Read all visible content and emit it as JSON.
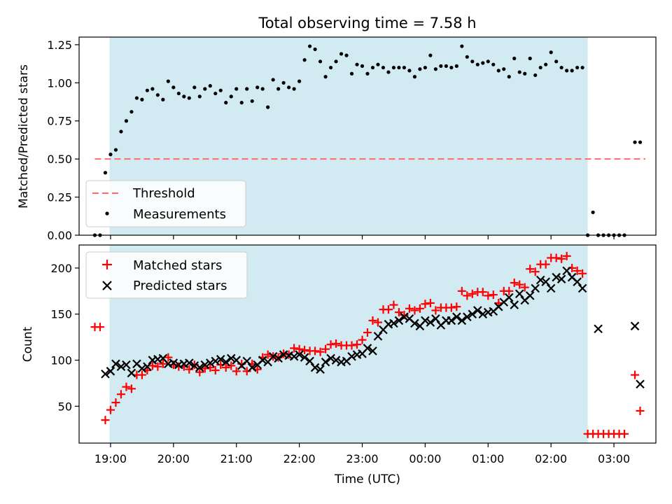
{
  "title": "Total observing time = 7.58 h",
  "colors": {
    "observing_band": "#add8e6",
    "threshold": "#ff6b6b",
    "measurements": "#000000",
    "matched": "#ff0000",
    "predicted": "#000000"
  },
  "chart_data": [
    {
      "type": "scatter",
      "panel": "top",
      "ylabel": "Matched/Predicted stars",
      "ylim": [
        0.0,
        1.3
      ],
      "yticks": [
        "0.00",
        "0.25",
        "0.50",
        "0.75",
        "1.00",
        "1.25"
      ],
      "observing_window": [
        "18:59",
        "02:35"
      ],
      "threshold": {
        "name": "Threshold",
        "value": 0.5,
        "from": "18:45",
        "to": "03:30"
      },
      "series": [
        {
          "name": "Measurements",
          "x": [
            "18:45",
            "18:50",
            "18:55",
            "19:00",
            "19:05",
            "19:10",
            "19:15",
            "19:20",
            "19:25",
            "19:30",
            "19:35",
            "19:40",
            "19:45",
            "19:50",
            "19:55",
            "20:00",
            "20:05",
            "20:10",
            "20:15",
            "20:20",
            "20:25",
            "20:30",
            "20:35",
            "20:40",
            "20:45",
            "20:50",
            "20:55",
            "21:00",
            "21:05",
            "21:10",
            "21:15",
            "21:20",
            "21:25",
            "21:30",
            "21:35",
            "21:40",
            "21:45",
            "21:50",
            "21:55",
            "22:00",
            "22:05",
            "22:10",
            "22:15",
            "22:20",
            "22:25",
            "22:30",
            "22:35",
            "22:40",
            "22:45",
            "22:50",
            "22:55",
            "23:00",
            "23:05",
            "23:10",
            "23:15",
            "23:20",
            "23:25",
            "23:30",
            "23:35",
            "23:40",
            "23:45",
            "23:50",
            "23:55",
            "00:00",
            "00:05",
            "00:10",
            "00:15",
            "00:20",
            "00:25",
            "00:30",
            "00:35",
            "00:40",
            "00:45",
            "00:50",
            "00:55",
            "01:00",
            "01:05",
            "01:10",
            "01:15",
            "01:20",
            "01:25",
            "01:30",
            "01:35",
            "01:40",
            "01:45",
            "01:50",
            "01:55",
            "02:00",
            "02:05",
            "02:10",
            "02:15",
            "02:20",
            "02:25",
            "02:30",
            "02:35",
            "02:40",
            "02:45",
            "02:50",
            "02:55",
            "03:00",
            "03:05",
            "03:10",
            "03:20",
            "03:25"
          ],
          "y": [
            0.0,
            0.0,
            0.41,
            0.53,
            0.56,
            0.68,
            0.75,
            0.81,
            0.9,
            0.89,
            0.95,
            0.96,
            0.92,
            0.89,
            1.01,
            0.97,
            0.93,
            0.91,
            0.9,
            0.97,
            0.91,
            0.96,
            0.98,
            0.93,
            0.95,
            0.87,
            0.91,
            0.96,
            0.87,
            0.96,
            0.88,
            0.97,
            0.96,
            0.84,
            1.02,
            0.96,
            1.0,
            0.97,
            0.96,
            1.01,
            1.15,
            1.24,
            1.22,
            1.14,
            1.04,
            1.1,
            1.14,
            1.19,
            1.18,
            1.06,
            1.12,
            1.11,
            1.06,
            1.1,
            1.12,
            1.1,
            1.07,
            1.1,
            1.1,
            1.1,
            1.08,
            1.04,
            1.09,
            1.1,
            1.18,
            1.09,
            1.11,
            1.11,
            1.1,
            1.11,
            1.24,
            1.17,
            1.14,
            1.12,
            1.13,
            1.14,
            1.12,
            1.08,
            1.09,
            1.04,
            1.16,
            1.07,
            1.06,
            1.16,
            1.05,
            1.1,
            1.12,
            1.2,
            1.14,
            1.1,
            1.08,
            1.08,
            1.1,
            1.1,
            0.0,
            0.15,
            0.0,
            0.0,
            0.0,
            0.0,
            0.0,
            0.0,
            0.61,
            0.61
          ]
        }
      ],
      "legend": {
        "position": "lower left",
        "entries": [
          "Threshold",
          "Measurements"
        ]
      }
    },
    {
      "type": "scatter",
      "panel": "bottom",
      "xlabel": "Time (UTC)",
      "ylabel": "Count",
      "ylim": [
        10,
        225
      ],
      "yticks": [
        "50",
        "100",
        "150",
        "200"
      ],
      "xlim": [
        "18:30",
        "03:40"
      ],
      "xticks": [
        "19:00",
        "20:00",
        "21:00",
        "22:00",
        "23:00",
        "00:00",
        "01:00",
        "02:00",
        "03:00"
      ],
      "observing_window": [
        "18:59",
        "02:35"
      ],
      "series": [
        {
          "name": "Matched stars",
          "marker": "+",
          "x": [
            "18:45",
            "18:50",
            "18:55",
            "19:00",
            "19:05",
            "19:10",
            "19:15",
            "19:20",
            "19:25",
            "19:30",
            "19:35",
            "19:40",
            "19:45",
            "19:50",
            "19:55",
            "20:00",
            "20:05",
            "20:10",
            "20:15",
            "20:20",
            "20:25",
            "20:30",
            "20:35",
            "20:40",
            "20:45",
            "20:50",
            "20:55",
            "21:00",
            "21:05",
            "21:10",
            "21:15",
            "21:20",
            "21:25",
            "21:30",
            "21:35",
            "21:40",
            "21:45",
            "21:50",
            "21:55",
            "22:00",
            "22:05",
            "22:10",
            "22:15",
            "22:20",
            "22:25",
            "22:30",
            "22:35",
            "22:40",
            "22:45",
            "22:50",
            "22:55",
            "23:00",
            "23:05",
            "23:10",
            "23:15",
            "23:20",
            "23:25",
            "23:30",
            "23:35",
            "23:40",
            "23:45",
            "23:50",
            "23:55",
            "00:00",
            "00:05",
            "00:10",
            "00:15",
            "00:20",
            "00:25",
            "00:30",
            "00:35",
            "00:40",
            "00:45",
            "00:50",
            "00:55",
            "01:00",
            "01:05",
            "01:10",
            "01:15",
            "01:20",
            "01:25",
            "01:30",
            "01:35",
            "01:40",
            "01:45",
            "01:50",
            "01:55",
            "02:00",
            "02:05",
            "02:10",
            "02:15",
            "02:20",
            "02:25",
            "02:30",
            "02:35",
            "02:40",
            "02:45",
            "02:50",
            "02:55",
            "03:00",
            "03:05",
            "03:10",
            "03:20",
            "03:25"
          ],
          "y": [
            136,
            136,
            35,
            46,
            54,
            63,
            71,
            69,
            84,
            84,
            89,
            94,
            93,
            96,
            103,
            95,
            93,
            93,
            90,
            95,
            87,
            91,
            92,
            89,
            95,
            92,
            94,
            88,
            96,
            88,
            96,
            90,
            103,
            106,
            104,
            103,
            107,
            106,
            113,
            112,
            111,
            110,
            110,
            109,
            112,
            117,
            118,
            116,
            116,
            116,
            117,
            122,
            130,
            143,
            141,
            155,
            155,
            160,
            152,
            149,
            156,
            154,
            156,
            161,
            162,
            154,
            157,
            157,
            157,
            158,
            175,
            170,
            172,
            174,
            174,
            170,
            171,
            162,
            175,
            175,
            184,
            182,
            179,
            199,
            196,
            204,
            204,
            211,
            211,
            210,
            213,
            200,
            197,
            194,
            20,
            20,
            20,
            20,
            20,
            20,
            20,
            20,
            84,
            45
          ]
        },
        {
          "name": "Predicted stars",
          "marker": "x",
          "x": [
            "18:55",
            "19:00",
            "19:05",
            "19:10",
            "19:15",
            "19:20",
            "19:25",
            "19:30",
            "19:35",
            "19:40",
            "19:45",
            "19:50",
            "19:55",
            "20:00",
            "20:05",
            "20:10",
            "20:15",
            "20:20",
            "20:25",
            "20:30",
            "20:35",
            "20:40",
            "20:45",
            "20:50",
            "20:55",
            "21:00",
            "21:05",
            "21:10",
            "21:15",
            "21:20",
            "21:25",
            "21:30",
            "21:35",
            "21:40",
            "21:45",
            "21:50",
            "21:55",
            "22:00",
            "22:05",
            "22:10",
            "22:15",
            "22:20",
            "22:25",
            "22:30",
            "22:35",
            "22:40",
            "22:45",
            "22:50",
            "22:55",
            "23:00",
            "23:05",
            "23:10",
            "23:15",
            "23:20",
            "23:25",
            "23:30",
            "23:35",
            "23:40",
            "23:45",
            "23:50",
            "23:55",
            "00:00",
            "00:05",
            "00:10",
            "00:15",
            "00:20",
            "00:25",
            "00:30",
            "00:35",
            "00:40",
            "00:45",
            "00:50",
            "00:55",
            "01:00",
            "01:05",
            "01:10",
            "01:15",
            "01:20",
            "01:25",
            "01:30",
            "01:35",
            "01:40",
            "01:45",
            "01:50",
            "01:55",
            "02:00",
            "02:05",
            "02:10",
            "02:15",
            "02:20",
            "02:25",
            "02:30",
            "02:45",
            "03:20",
            "03:25"
          ],
          "y": [
            85,
            88,
            96,
            93,
            95,
            86,
            96,
            91,
            93,
            100,
            101,
            102,
            96,
            97,
            95,
            96,
            97,
            94,
            92,
            95,
            97,
            99,
            101,
            98,
            102,
            100,
            94,
            99,
            92,
            95,
            100,
            98,
            104,
            102,
            106,
            105,
            104,
            106,
            103,
            99,
            92,
            90,
            98,
            102,
            100,
            98,
            99,
            104,
            106,
            107,
            113,
            110,
            126,
            133,
            139,
            140,
            143,
            147,
            145,
            140,
            137,
            143,
            141,
            145,
            138,
            143,
            143,
            147,
            143,
            147,
            150,
            154,
            150,
            152,
            153,
            158,
            163,
            168,
            160,
            172,
            165,
            170,
            178,
            187,
            185,
            178,
            190,
            188,
            197,
            190,
            185,
            178,
            134,
            137,
            74
          ]
        }
      ],
      "legend": {
        "position": "upper left",
        "entries": [
          "Matched stars",
          "Predicted stars"
        ]
      }
    }
  ]
}
